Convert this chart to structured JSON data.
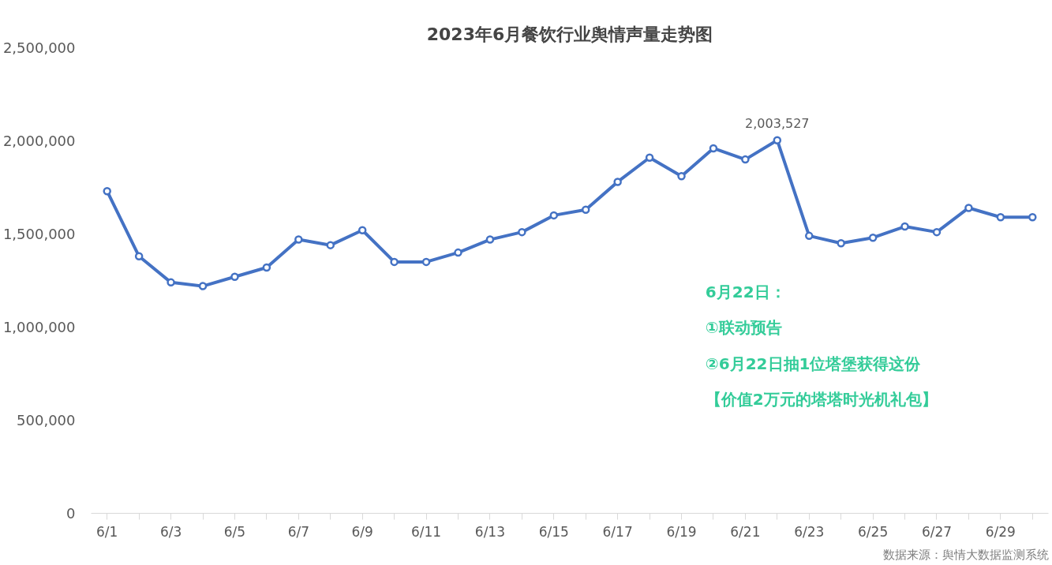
{
  "chart_data": {
    "type": "line",
    "title": "2023年6月餐饮行业舆情声量走势图",
    "categories": [
      "6/1",
      null,
      "6/3",
      null,
      "6/5",
      null,
      "6/7",
      null,
      "6/9",
      null,
      "6/11",
      null,
      "6/13",
      null,
      "6/15",
      null,
      "6/17",
      null,
      "6/19",
      null,
      "6/21",
      null,
      "6/23",
      null,
      "6/25",
      null,
      "6/27",
      null,
      "6/29",
      null
    ],
    "series": [
      {
        "color": "#4472c4",
        "values": [
          1730000,
          1380000,
          1240000,
          1220000,
          1270000,
          1320000,
          1470000,
          1440000,
          1520000,
          1350000,
          1350000,
          1400000,
          1470000,
          1510000,
          1600000,
          1630000,
          1780000,
          1910000,
          1810000,
          1960000,
          1900000,
          2003527,
          1490000,
          1450000,
          1480000,
          1540000,
          1510000,
          1640000,
          1590000,
          1590000
        ],
        "value_labels": [
          null,
          null,
          null,
          null,
          null,
          null,
          null,
          null,
          null,
          null,
          null,
          null,
          null,
          null,
          null,
          null,
          null,
          null,
          null,
          null,
          null,
          "2,003,527",
          null,
          null,
          null,
          null,
          null,
          null,
          null,
          null
        ]
      }
    ],
    "ylim": [
      0,
      2500000
    ],
    "yticks": [
      {
        "value": 0,
        "label": "0"
      },
      {
        "value": 500000,
        "label": "500,000"
      },
      {
        "value": 1000000,
        "label": "1,000,000"
      },
      {
        "value": 1500000,
        "label": "1,500,000"
      },
      {
        "value": 2000000,
        "label": "2,000,000"
      },
      {
        "value": 2500000,
        "label": "2,500,000"
      }
    ],
    "grid": false,
    "marker": "circle",
    "line_style": "solid",
    "annotations": [
      "6月22日：",
      "①联动预告",
      "②6月22日抽1位塔堡获得这份",
      "【价值2万元的塔塔时光机礼包】",
      "数据来源：舆情大数据监测系统"
    ]
  }
}
